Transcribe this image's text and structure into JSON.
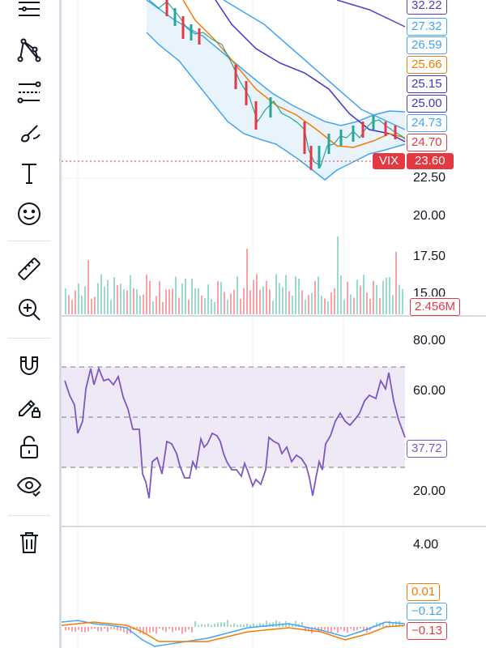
{
  "toolbar": {
    "tools": [
      {
        "name": "indicators-menu-icon"
      },
      {
        "name": "pattern-tool-icon"
      },
      {
        "name": "fib-tool-icon"
      },
      {
        "name": "brush-tool-icon"
      },
      {
        "name": "text-tool-icon"
      },
      {
        "name": "emoji-tool-icon"
      },
      {
        "name": "ruler-tool-icon"
      },
      {
        "name": "zoom-in-icon"
      },
      {
        "name": "magnet-icon"
      },
      {
        "name": "lock-drawing-icon"
      },
      {
        "name": "unlock-icon"
      },
      {
        "name": "eye-icon"
      },
      {
        "name": "trash-icon"
      }
    ]
  },
  "price_pane": {
    "axis_ticks": [
      "22.50",
      "20.00",
      "17.50",
      "15.00"
    ],
    "tags": [
      {
        "value": "32.22",
        "color": "#5b3cc4"
      },
      {
        "value": "27.32",
        "color": "#42a5f5"
      },
      {
        "value": "26.59",
        "color": "#42a5f5"
      },
      {
        "value": "25.66",
        "color": "#f57c00"
      },
      {
        "value": "25.15",
        "color": "#3f37c9"
      },
      {
        "value": "25.00",
        "color": "#3f37c9"
      },
      {
        "value": "24.73",
        "color": "#42a5f5"
      },
      {
        "value": "24.70",
        "color": "#e53942"
      }
    ],
    "symbol": "VIX",
    "last_price": "23.60",
    "volume": "2.456M"
  },
  "rsi_pane": {
    "axis_ticks": [
      "80.00",
      "60.00",
      "20.00"
    ],
    "value": "37.72",
    "color": "#7e57c2"
  },
  "macd_pane": {
    "axis_ticks": [
      "4.00"
    ],
    "tags": [
      {
        "value": "0.01",
        "color": "#f57c00"
      },
      {
        "value": "−0.12",
        "color": "#42a5f5"
      },
      {
        "value": "−0.13",
        "color": "#e53942"
      }
    ]
  }
}
